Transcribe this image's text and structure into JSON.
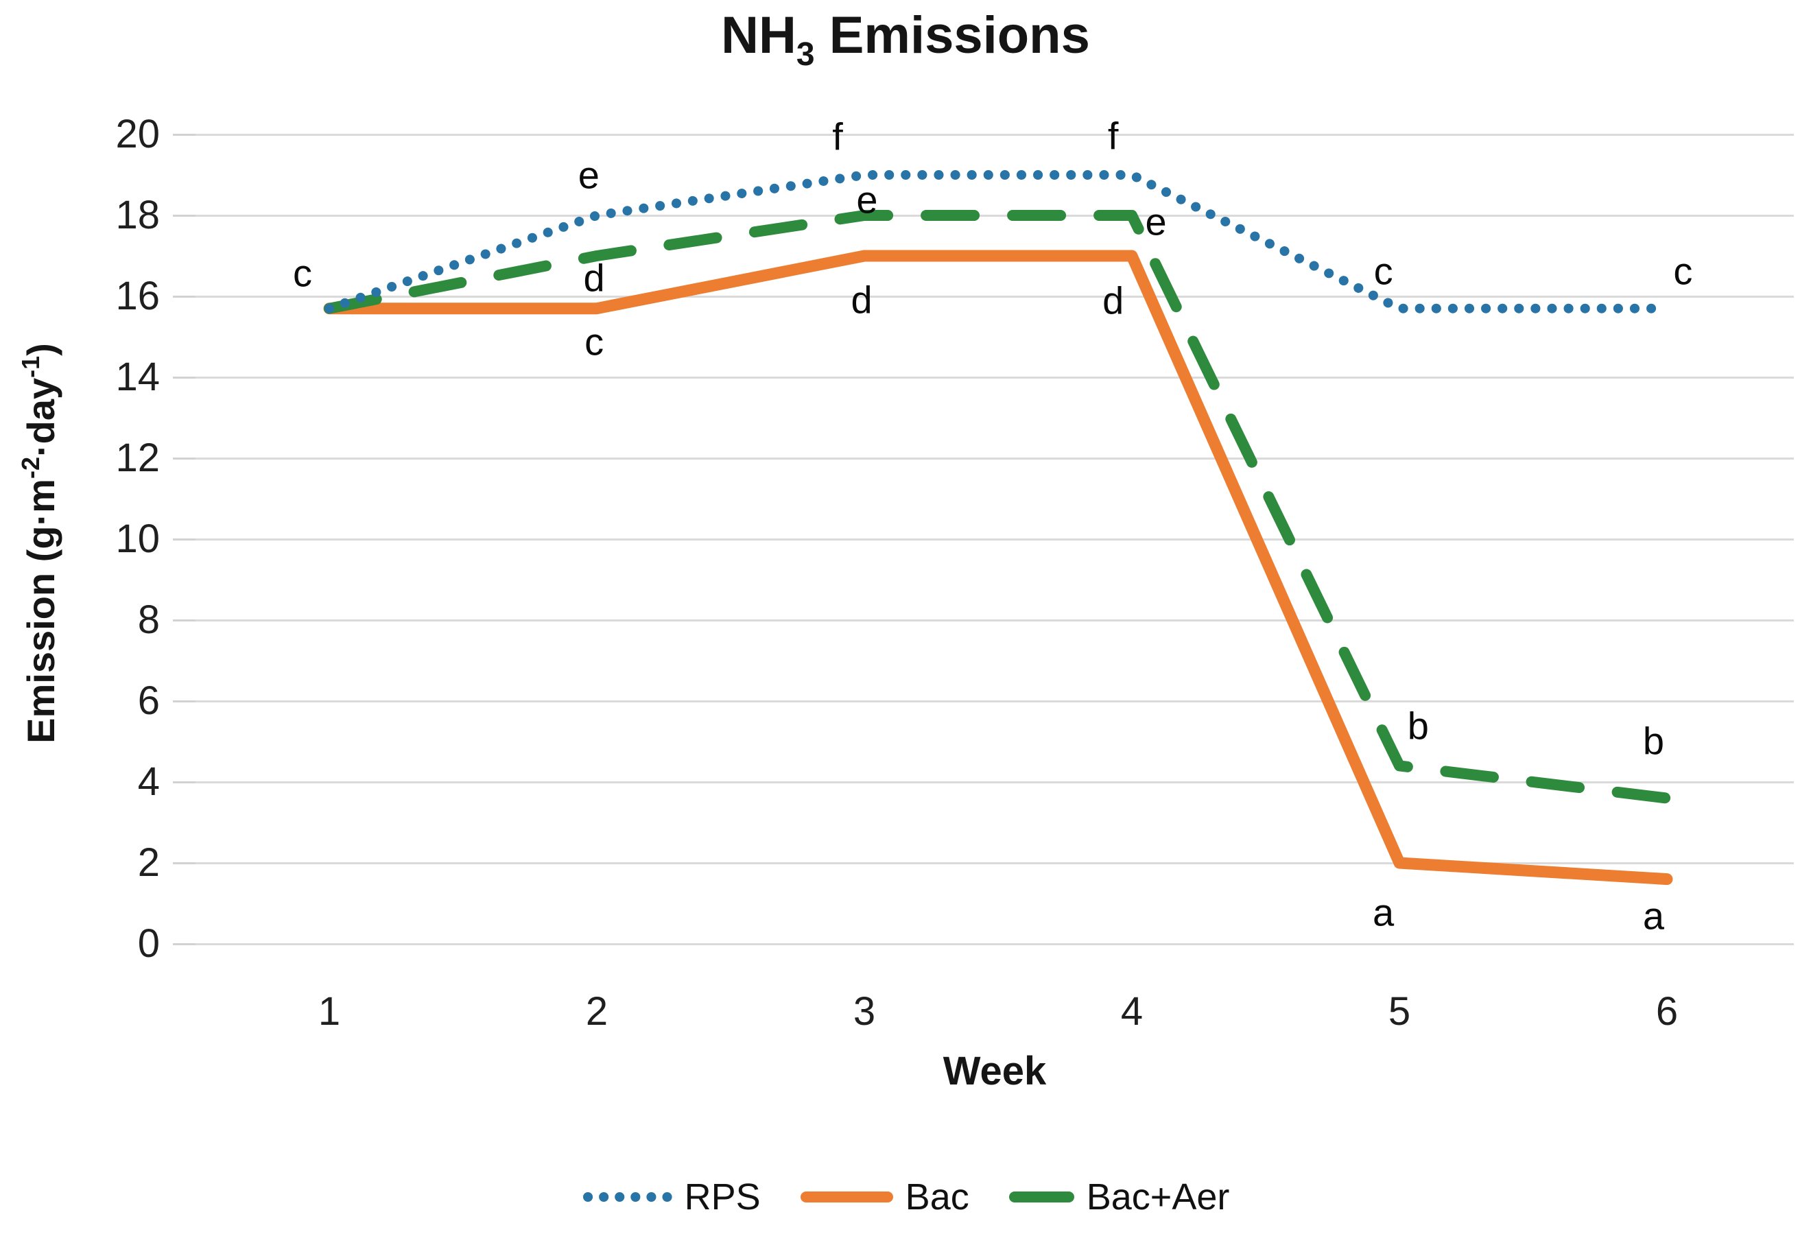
{
  "title": {
    "pre": "NH",
    "sub": "3",
    "post": " Emissions"
  },
  "y_axis": {
    "title_parts": {
      "pre": "Emission (g·m",
      "sup1": "-2",
      "mid": "·day",
      "sup2": "-1",
      "post": ")"
    },
    "ticks": [
      20,
      18,
      16,
      14,
      12,
      10,
      8,
      6,
      4,
      2,
      0
    ],
    "max": 20
  },
  "x_axis": {
    "title": "Week",
    "categories": [
      "1",
      "2",
      "3",
      "4",
      "5",
      "6"
    ]
  },
  "colors": {
    "rps_blue": "#2874A6",
    "bac_orange": "#ED7D31",
    "bacaer_green": "#2E8B3D",
    "gridline": "#dadada"
  },
  "legend": [
    {
      "label": "RPS",
      "style": "dotted",
      "color": "#2874A6"
    },
    {
      "label": "Bac",
      "style": "solid",
      "color": "#ED7D31"
    },
    {
      "label": "Bac+Aer",
      "style": "dashed",
      "color": "#2E8B3D"
    }
  ],
  "chart_data": {
    "type": "line",
    "title": "NH3 Emissions",
    "xlabel": "Week",
    "ylabel": "Emission (g·m-2·day-1)",
    "x": [
      1,
      2,
      3,
      4,
      5,
      6
    ],
    "categories": [
      "1",
      "2",
      "3",
      "4",
      "5",
      "6"
    ],
    "ylim": [
      0,
      20
    ],
    "ytick_step": 2,
    "grid": "horizontal",
    "legend_position": "bottom",
    "series": [
      {
        "name": "RPS",
        "color": "#2874A6",
        "line_style": "dotted",
        "values": [
          15.7,
          18,
          19,
          19,
          15.7,
          15.7
        ],
        "point_labels": [
          "c",
          "e",
          "f",
          "f",
          "c",
          "c"
        ]
      },
      {
        "name": "Bac",
        "color": "#ED7D31",
        "line_style": "solid",
        "values": [
          15.7,
          15.7,
          17,
          17,
          2.0,
          1.6
        ],
        "point_labels": [
          "c",
          "c",
          "d",
          "d",
          "a",
          "a"
        ]
      },
      {
        "name": "Bac+Aer",
        "color": "#2E8B3D",
        "line_style": "dashed",
        "values": [
          15.7,
          17,
          18,
          18,
          4.4,
          3.6
        ],
        "point_labels": [
          "c",
          "d",
          "e",
          "e",
          "b",
          "b"
        ]
      }
    ],
    "annotations": [
      {
        "text": "c",
        "week": 0.9,
        "value": 16.58
      },
      {
        "text": "e",
        "week": 1.97,
        "value": 19.0
      },
      {
        "text": "d",
        "week": 1.99,
        "value": 16.46
      },
      {
        "text": "c",
        "week": 1.99,
        "value": 14.88
      },
      {
        "text": "f",
        "week": 2.9,
        "value": 19.95
      },
      {
        "text": "e",
        "week": 3.01,
        "value": 18.39
      },
      {
        "text": "d",
        "week": 2.99,
        "value": 15.92
      },
      {
        "text": "f",
        "week": 3.93,
        "value": 19.97
      },
      {
        "text": "e",
        "week": 4.09,
        "value": 17.85
      },
      {
        "text": "d",
        "week": 3.93,
        "value": 15.9
      },
      {
        "text": "c",
        "week": 4.94,
        "value": 16.63
      },
      {
        "text": "b",
        "week": 5.07,
        "value": 5.39
      },
      {
        "text": "a",
        "week": 4.94,
        "value": 0.78
      },
      {
        "text": "c",
        "week": 6.06,
        "value": 16.63
      },
      {
        "text": "b",
        "week": 5.95,
        "value": 5.02
      },
      {
        "text": "a",
        "week": 5.95,
        "value": 0.69
      }
    ]
  }
}
